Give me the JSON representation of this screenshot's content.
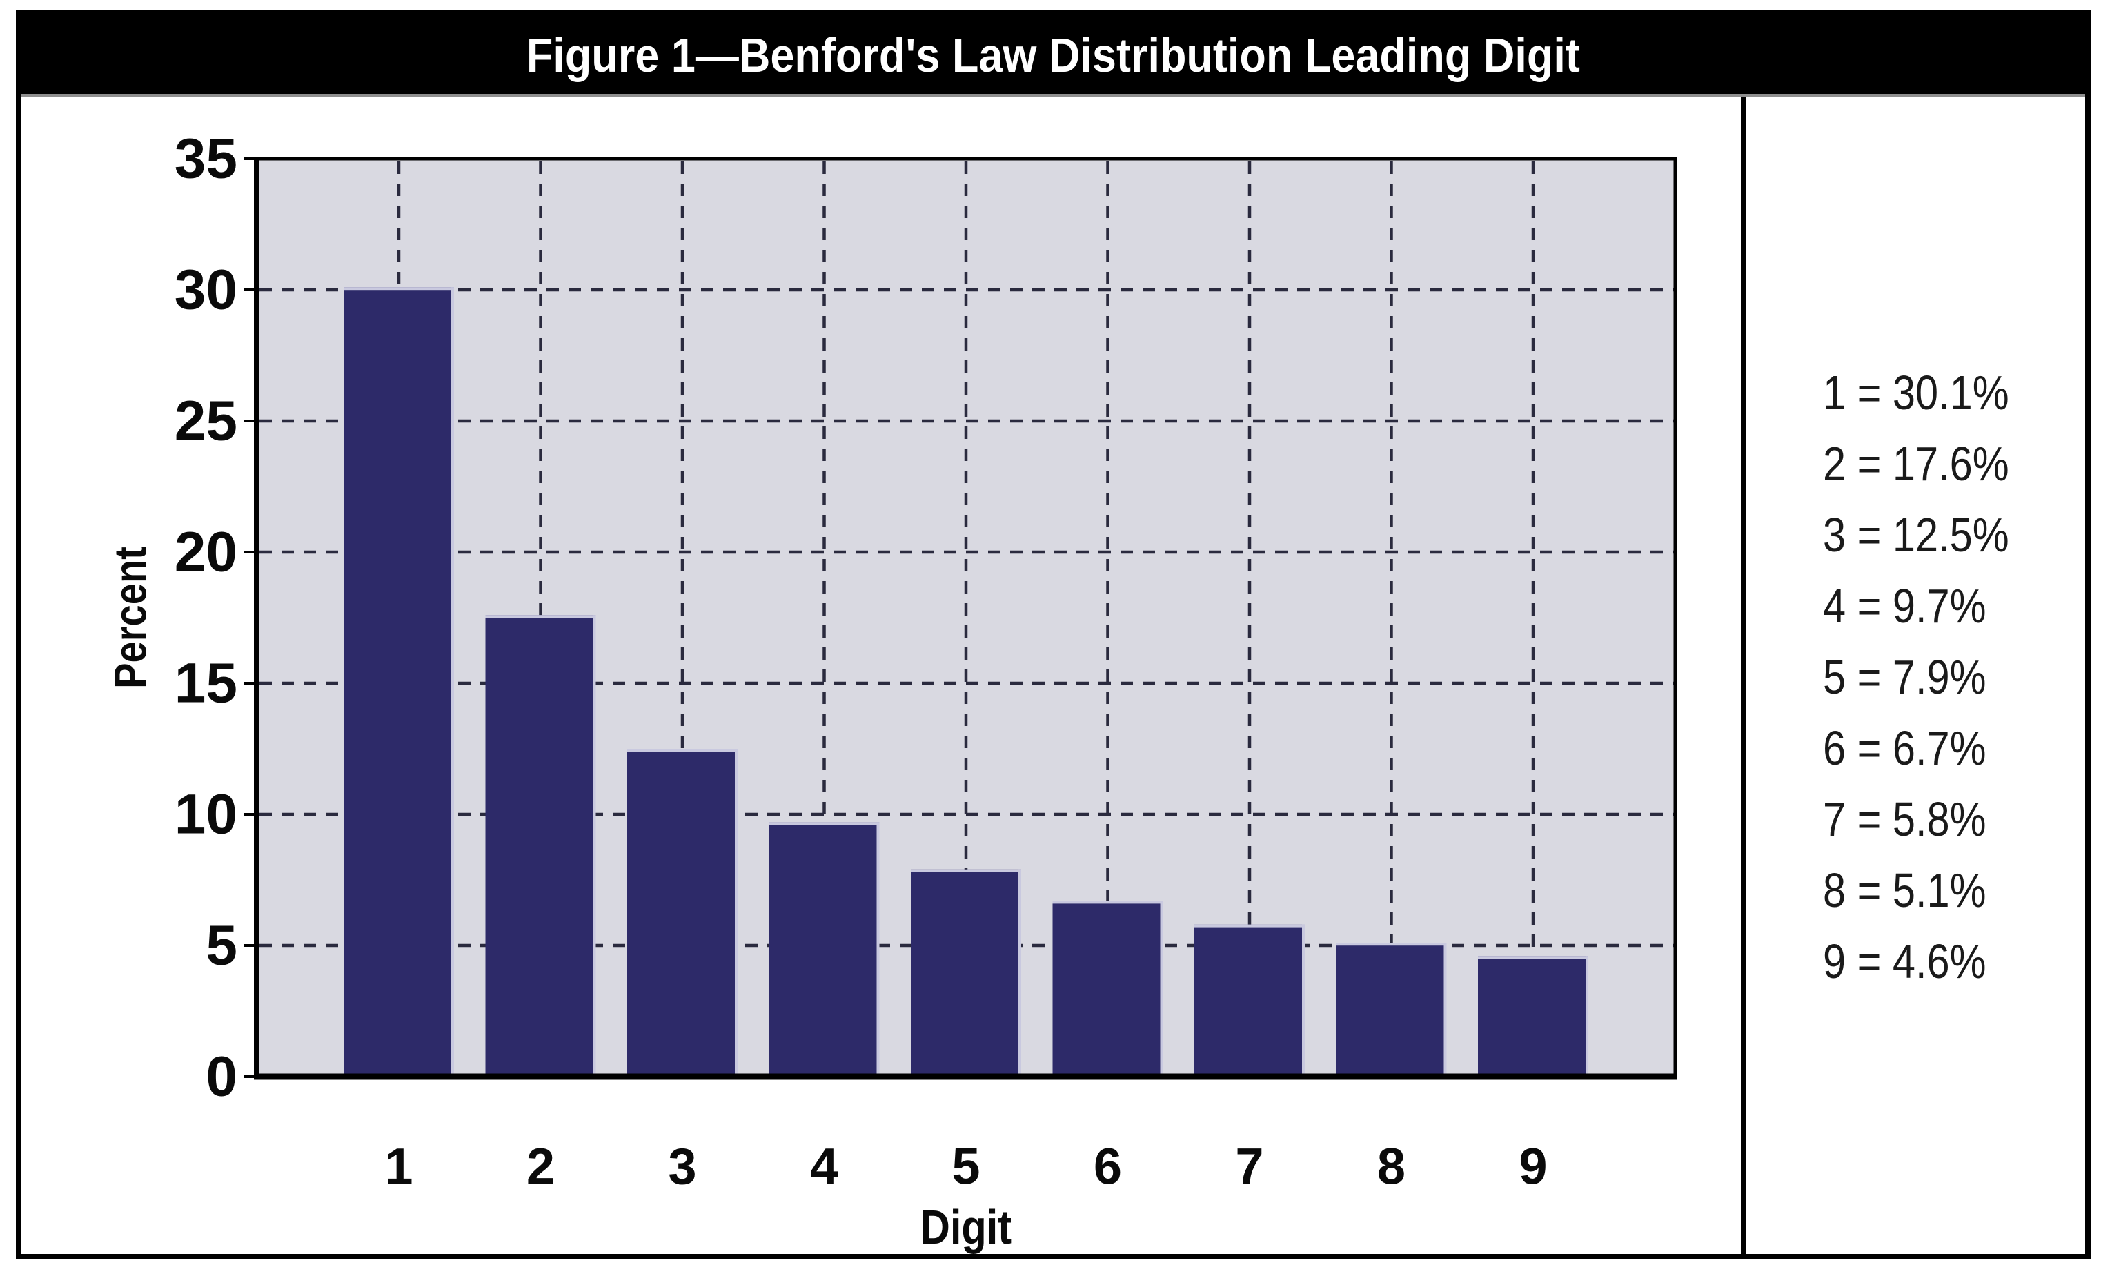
{
  "title": "Figure 1—Benford's Law Distribution Leading Digit",
  "chart_data": {
    "type": "bar",
    "categories": [
      "1",
      "2",
      "3",
      "4",
      "5",
      "6",
      "7",
      "8",
      "9"
    ],
    "values": [
      30.1,
      17.6,
      12.5,
      9.7,
      7.9,
      6.7,
      5.8,
      5.1,
      4.6
    ],
    "title": "Figure 1—Benford's Law Distribution Leading Digit",
    "xlabel": "Digit",
    "ylabel": "Percent",
    "ylim": [
      0,
      35
    ],
    "ytick_step": 5,
    "ytick_labels": [
      "0",
      "5",
      "10",
      "15",
      "20",
      "25",
      "30",
      "35"
    ],
    "grid": "dashed horizontal lines at each 5% and dashed vertical lines at each category center",
    "legend_position": "right-panel",
    "bar_color": "#2D2A69",
    "bar_highlight_color": "#C9C9DF",
    "plot_bg_color": "#D9D9E1",
    "gridline_color": "#2A2A3E",
    "axis_color": "#000000"
  },
  "legend": {
    "items": [
      "1 = 30.1%",
      "2 = 17.6%",
      "3 = 12.5%",
      "4 = 9.7%",
      "5 = 7.9%",
      "6 = 6.7%",
      "7 = 5.8%",
      "8 = 5.1%",
      "9 = 4.6%"
    ]
  },
  "colors": {
    "title_bar_bg": "#000000",
    "title_text": "#ffffff",
    "frame_border": "#000000",
    "page_bg": "#ffffff"
  }
}
